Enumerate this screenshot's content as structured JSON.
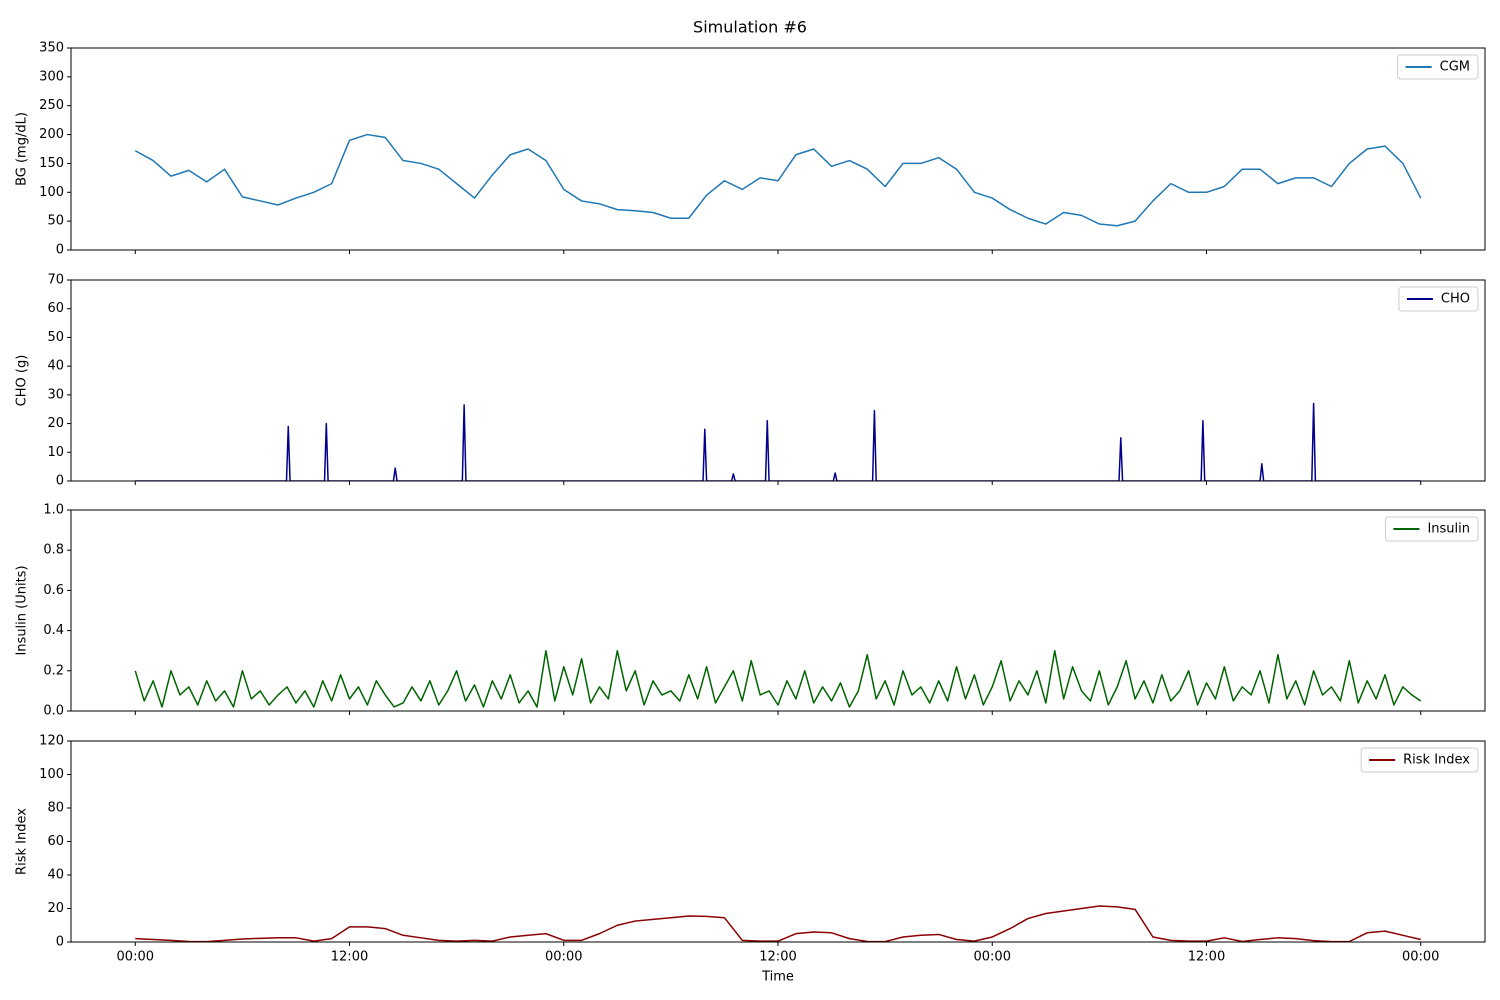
{
  "title": "Simulation #6",
  "chart_data": [
    {
      "type": "line",
      "ylabel": "BG (mg/dL)",
      "x": [
        0,
        1,
        2,
        3,
        4,
        5,
        6,
        7,
        8,
        9,
        10,
        11,
        12,
        13,
        14,
        15,
        16,
        17,
        18,
        19,
        20,
        21,
        22,
        23,
        24,
        25,
        26,
        27,
        28,
        29,
        30,
        31,
        32,
        33,
        34,
        35,
        36,
        37,
        38,
        39,
        40,
        41,
        42,
        43,
        44,
        45,
        46,
        47,
        48,
        49,
        50,
        51,
        52,
        53,
        54,
        55,
        56,
        57,
        58,
        59,
        60,
        61,
        62,
        63,
        64,
        65,
        66,
        67,
        68,
        69,
        70,
        71,
        72
      ],
      "series": [
        {
          "name": "CGM",
          "color": "#1f77b4",
          "values": [
            172,
            155,
            128,
            138,
            118,
            140,
            92,
            85,
            78,
            90,
            100,
            115,
            190,
            200,
            195,
            155,
            150,
            140,
            115,
            90,
            130,
            165,
            175,
            155,
            105,
            85,
            80,
            70,
            68,
            65,
            55,
            55,
            95,
            120,
            105,
            125,
            120,
            165,
            175,
            145,
            155,
            140,
            110,
            150,
            150,
            160,
            140,
            100,
            90,
            70,
            55,
            45,
            65,
            60,
            45,
            42,
            50,
            85,
            115,
            100,
            100,
            110,
            140,
            140,
            115,
            125,
            125,
            110,
            150,
            175,
            180,
            150,
            90
          ]
        }
      ],
      "xlim": [
        -3.6,
        75.6
      ],
      "ylim": [
        0,
        350
      ],
      "yticks": [
        0,
        50,
        100,
        150,
        200,
        250,
        300,
        350
      ],
      "legend": "upper right"
    },
    {
      "type": "line",
      "ylabel": "CHO (g)",
      "x": [
        0,
        8.47,
        8.57,
        8.67,
        10.6,
        10.7,
        10.8,
        14.46,
        14.56,
        14.66,
        18.32,
        18.42,
        18.52,
        31.8,
        31.9,
        32.0,
        33.4,
        33.5,
        33.6,
        35.3,
        35.4,
        35.5,
        39.1,
        39.2,
        39.3,
        41.3,
        41.4,
        41.5,
        55.1,
        55.2,
        55.3,
        59.7,
        59.8,
        59.9,
        63.0,
        63.1,
        63.2,
        65.9,
        66.0,
        66.1,
        72
      ],
      "series": [
        {
          "name": "CHO",
          "color": "#00008b",
          "values": [
            0,
            0,
            19,
            0,
            0,
            20,
            0,
            0,
            4.5,
            0,
            0,
            26.5,
            0,
            0,
            18,
            0,
            0,
            2.5,
            0,
            0,
            21,
            0,
            0,
            2.8,
            0,
            0,
            24.5,
            0,
            0,
            15,
            0,
            0,
            21,
            0,
            0,
            6,
            0,
            0,
            27,
            0,
            0
          ]
        }
      ],
      "xlim": [
        -3.6,
        75.6
      ],
      "ylim": [
        0,
        70
      ],
      "yticks": [
        0,
        10,
        20,
        30,
        40,
        50,
        60,
        70
      ],
      "legend": "upper right"
    },
    {
      "type": "line",
      "ylabel": "Insulin (Units)",
      "x": [
        0,
        0.5,
        1,
        1.5,
        2,
        2.5,
        3,
        3.5,
        4,
        4.5,
        5,
        5.5,
        6,
        6.5,
        7,
        7.5,
        8,
        8.5,
        9,
        9.5,
        10,
        10.5,
        11,
        11.5,
        12,
        12.5,
        13,
        13.5,
        14,
        14.5,
        15,
        15.5,
        16,
        16.5,
        17,
        17.5,
        18,
        18.5,
        19,
        19.5,
        20,
        20.5,
        21,
        21.5,
        22,
        22.5,
        23,
        23.5,
        24,
        24.5,
        25,
        25.5,
        26,
        26.5,
        27,
        27.5,
        28,
        28.5,
        29,
        29.5,
        30,
        30.5,
        31,
        31.5,
        32,
        32.5,
        33,
        33.5,
        34,
        34.5,
        35,
        35.5,
        36,
        36.5,
        37,
        37.5,
        38,
        38.5,
        39,
        39.5,
        40,
        40.5,
        41,
        41.5,
        42,
        42.5,
        43,
        43.5,
        44,
        44.5,
        45,
        45.5,
        46,
        46.5,
        47,
        47.5,
        48,
        48.5,
        49,
        49.5,
        50,
        50.5,
        51,
        51.5,
        52,
        52.5,
        53,
        53.5,
        54,
        54.5,
        55,
        55.5,
        56,
        56.5,
        57,
        57.5,
        58,
        58.5,
        59,
        59.5,
        60,
        60.5,
        61,
        61.5,
        62,
        62.5,
        63,
        63.5,
        64,
        64.5,
        65,
        65.5,
        66,
        66.5,
        67,
        67.5,
        68,
        68.5,
        69,
        69.5,
        70,
        70.5,
        71,
        71.5,
        72
      ],
      "series": [
        {
          "name": "Insulin",
          "color": "#006400",
          "values": [
            0.2,
            0.05,
            0.15,
            0.02,
            0.2,
            0.08,
            0.12,
            0.03,
            0.15,
            0.05,
            0.1,
            0.02,
            0.2,
            0.06,
            0.1,
            0.03,
            0.08,
            0.12,
            0.04,
            0.1,
            0.02,
            0.15,
            0.05,
            0.18,
            0.06,
            0.12,
            0.03,
            0.15,
            0.08,
            0.02,
            0.04,
            0.12,
            0.05,
            0.15,
            0.03,
            0.1,
            0.2,
            0.05,
            0.13,
            0.02,
            0.15,
            0.06,
            0.18,
            0.04,
            0.1,
            0.02,
            0.3,
            0.05,
            0.22,
            0.08,
            0.26,
            0.04,
            0.12,
            0.06,
            0.3,
            0.1,
            0.2,
            0.03,
            0.15,
            0.08,
            0.1,
            0.05,
            0.18,
            0.06,
            0.22,
            0.04,
            0.12,
            0.2,
            0.05,
            0.25,
            0.08,
            0.1,
            0.03,
            0.15,
            0.06,
            0.2,
            0.04,
            0.12,
            0.05,
            0.14,
            0.02,
            0.1,
            0.28,
            0.06,
            0.15,
            0.03,
            0.2,
            0.08,
            0.12,
            0.04,
            0.15,
            0.05,
            0.22,
            0.06,
            0.18,
            0.03,
            0.12,
            0.25,
            0.05,
            0.15,
            0.08,
            0.2,
            0.04,
            0.3,
            0.06,
            0.22,
            0.1,
            0.05,
            0.2,
            0.03,
            0.12,
            0.25,
            0.06,
            0.15,
            0.04,
            0.18,
            0.05,
            0.1,
            0.2,
            0.03,
            0.14,
            0.06,
            0.22,
            0.05,
            0.12,
            0.08,
            0.2,
            0.04,
            0.28,
            0.06,
            0.15,
            0.03,
            0.2,
            0.08,
            0.12,
            0.05,
            0.25,
            0.04,
            0.15,
            0.06,
            0.18,
            0.03,
            0.12,
            0.08,
            0.05
          ]
        }
      ],
      "xlim": [
        -3.6,
        75.6
      ],
      "ylim": [
        0,
        1
      ],
      "yticks": [
        {
          "value": 0,
          "label": "0.0"
        },
        {
          "value": 0.2,
          "label": "0.2"
        },
        {
          "value": 0.4,
          "label": "0.4"
        },
        {
          "value": 0.6,
          "label": "0.6"
        },
        {
          "value": 0.8,
          "label": "0.8"
        },
        {
          "value": 1,
          "label": "1.0"
        }
      ],
      "legend": "upper right"
    },
    {
      "type": "line",
      "ylabel": "Risk Index",
      "xlabel": "Time",
      "x": [
        0,
        1,
        2,
        3,
        4,
        5,
        6,
        7,
        8,
        9,
        10,
        11,
        12,
        13,
        14,
        15,
        16,
        17,
        18,
        19,
        20,
        21,
        22,
        23,
        24,
        25,
        26,
        27,
        28,
        29,
        30,
        31,
        32,
        33,
        34,
        35,
        36,
        37,
        38,
        39,
        40,
        41,
        42,
        43,
        44,
        45,
        46,
        47,
        48,
        49,
        50,
        51,
        52,
        53,
        54,
        55,
        56,
        57,
        58,
        59,
        60,
        61,
        62,
        63,
        64,
        65,
        66,
        67,
        68,
        69,
        70,
        71,
        72
      ],
      "series": [
        {
          "name": "Risk Index",
          "color": "#8b0000",
          "values": [
            2,
            1.5,
            1,
            0.3,
            0.2,
            1,
            1.8,
            2.2,
            2.5,
            2.5,
            0.5,
            2,
            9,
            9,
            8,
            4,
            2.5,
            1,
            0.5,
            1,
            0.5,
            3,
            4,
            5,
            1,
            1,
            5,
            10,
            12.5,
            13.5,
            14.5,
            15.5,
            15.3,
            14.5,
            1,
            0.5,
            0.5,
            5,
            6,
            5.5,
            2,
            0.3,
            0.2,
            3,
            4,
            4.5,
            1.5,
            0.5,
            3,
            8,
            14,
            17,
            18.5,
            20,
            21.5,
            21,
            19.5,
            3,
            1,
            0.5,
            0.5,
            2.5,
            0.3,
            1.5,
            2.5,
            2,
            0.8,
            0.2,
            0.3,
            5.5,
            6.5,
            4,
            1.5
          ]
        }
      ],
      "xlim": [
        -3.6,
        75.6
      ],
      "ylim": [
        0,
        120
      ],
      "yticks": [
        0,
        20,
        40,
        60,
        80,
        100,
        120
      ],
      "xticks": [
        {
          "value": 0,
          "label": "00:00"
        },
        {
          "value": 12,
          "label": "12:00"
        },
        {
          "value": 24,
          "label": "00:00"
        },
        {
          "value": 36,
          "label": "12:00"
        },
        {
          "value": 48,
          "label": "00:00"
        },
        {
          "value": 60,
          "label": "12:00"
        },
        {
          "value": 72,
          "label": "00:00"
        }
      ],
      "legend": "upper right"
    }
  ]
}
